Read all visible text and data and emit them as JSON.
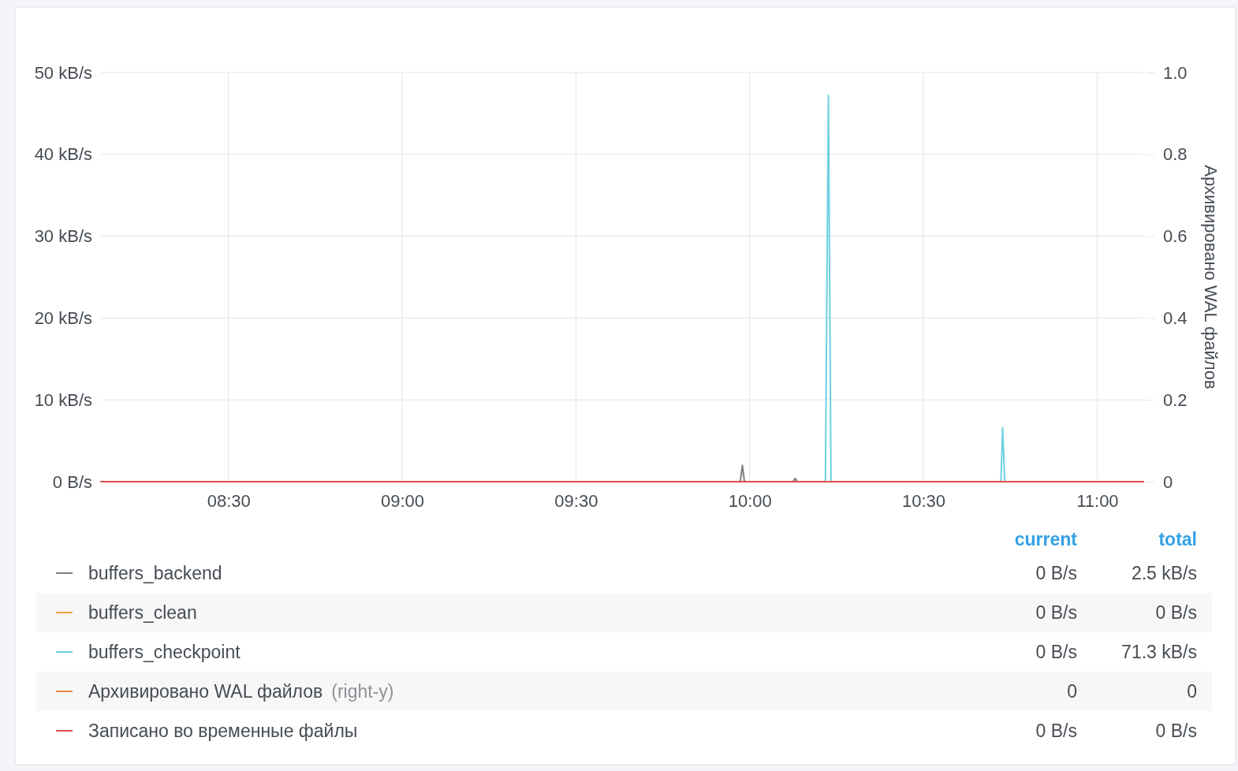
{
  "chart_data": {
    "type": "line",
    "xlim": [
      8.133,
      11.133
    ],
    "xticks": [
      {
        "value": 8.5,
        "label": "08:30"
      },
      {
        "value": 9,
        "label": "09:00"
      },
      {
        "value": 9.5,
        "label": "09:30"
      },
      {
        "value": 10,
        "label": "10:00"
      },
      {
        "value": 10.5,
        "label": "10:30"
      },
      {
        "value": 11,
        "label": "11:00"
      }
    ],
    "ylim": [
      0,
      50
    ],
    "yticks": [
      {
        "value": 0,
        "label": "0 B/s"
      },
      {
        "value": 10,
        "label": "10 kB/s"
      },
      {
        "value": 20,
        "label": "20 kB/s"
      },
      {
        "value": 30,
        "label": "30 kB/s"
      },
      {
        "value": 40,
        "label": "40 kB/s"
      },
      {
        "value": 50,
        "label": "50 kB/s"
      }
    ],
    "y2lim": [
      0,
      1
    ],
    "y2ticks": [
      0,
      0.2,
      0.4,
      0.6,
      0.8,
      {
        "value": 1,
        "label": "1.0"
      }
    ],
    "y2label": "Архивировано WAL файлов",
    "grid": true,
    "legend": "bottom",
    "series": [
      {
        "name": "buffers_backend",
        "color": "#7b8085",
        "x": [
          9.973,
          9.979,
          9.985,
          10.05,
          10.125,
          10.131,
          10.137
        ],
        "values": [
          0,
          2,
          0,
          null,
          0,
          0.4,
          0
        ]
      },
      {
        "name": "buffers_clean",
        "color": "#f5a243"
      },
      {
        "name": "buffers_checkpoint",
        "color": "#6ed0e0",
        "x": [
          10.218,
          10.2265,
          10.234,
          10.5,
          10.723,
          10.728,
          10.734
        ],
        "values": [
          0,
          47.2,
          0,
          null,
          0,
          6.6,
          0
        ]
      },
      {
        "name": "Архивировано WAL файлов",
        "color": "#ef843c",
        "axis": "y2"
      },
      {
        "name": "Записано во временные файлы",
        "color": "#e24d42",
        "x": [
          8.133,
          11.133
        ],
        "values": [
          0,
          0
        ]
      }
    ],
    "annotations": [
      "current",
      "total",
      "0 B/s",
      "2.5 kB/s",
      "0 B/s",
      "0 B/s",
      "0 B/s",
      "71.3 kB/s",
      "0",
      "0",
      "0 B/s",
      "0 B/s",
      "(right-y)"
    ]
  }
}
